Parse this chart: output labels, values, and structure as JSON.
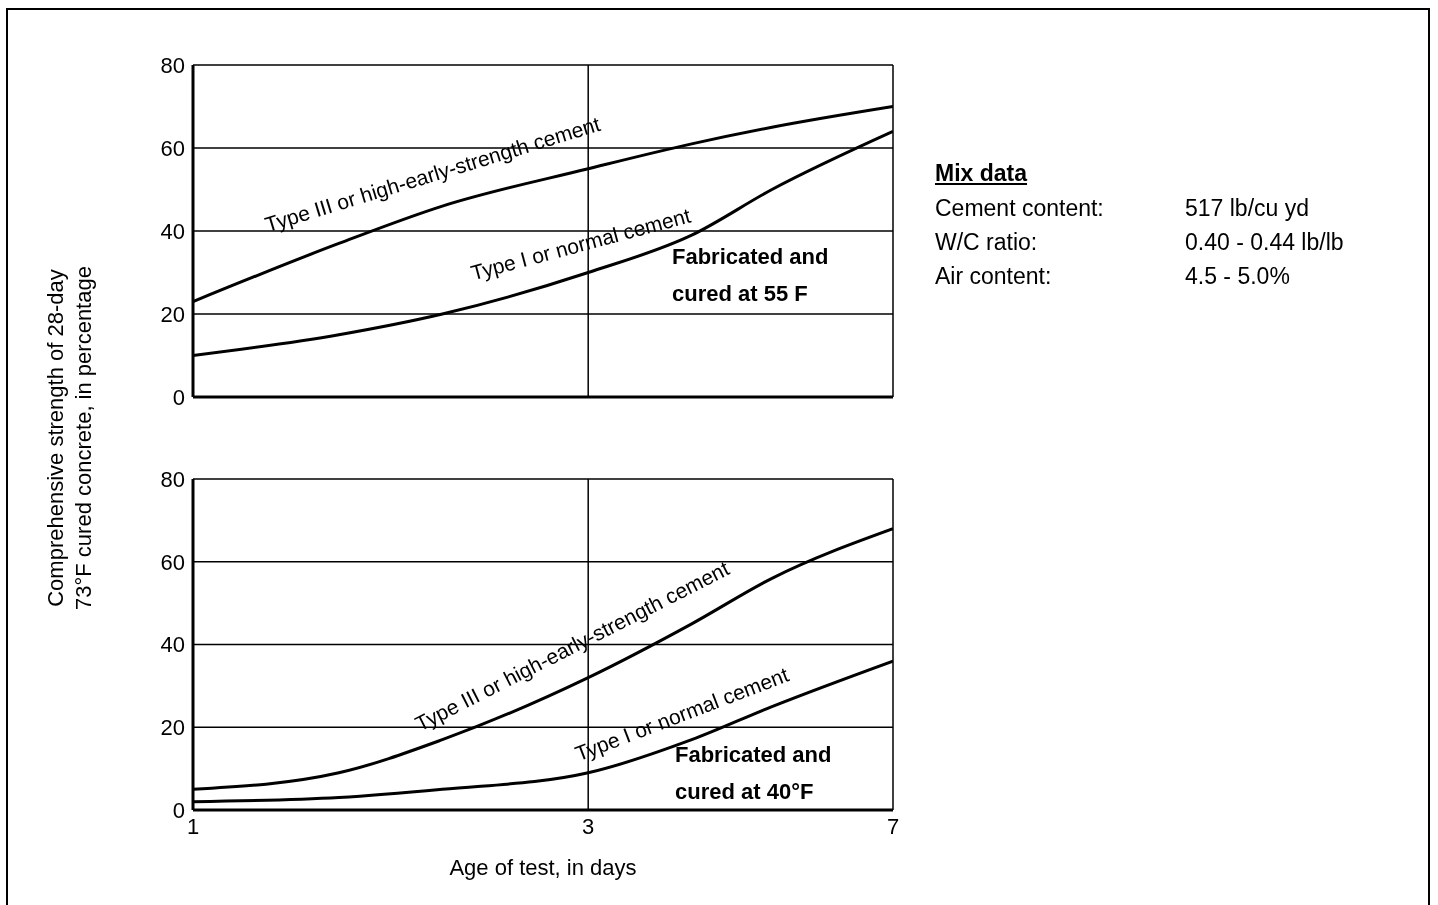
{
  "chart_data": [
    {
      "type": "line",
      "ylabel": "Comprehensive strength of 28-day\n73°F cured concrete, in percentage",
      "annotations": [
        "Fabricated and cured at 55 F"
      ],
      "log": "x",
      "xlim": [
        1,
        7
      ],
      "xticks": [
        1,
        3,
        7
      ],
      "ylim": [
        0,
        80
      ],
      "yticks": [
        0,
        20,
        40,
        60,
        80
      ],
      "grid": true,
      "tick_labels": "y",
      "x": [
        1,
        1.5,
        2,
        3,
        4,
        5,
        7
      ],
      "series": [
        {
          "name": "Type III or high-early-strength cement",
          "color": "#000000",
          "values": [
            23,
            37,
            46,
            55,
            61,
            65,
            70
          ]
        },
        {
          "name": "Type I or normal cement",
          "color": "#000000",
          "values": [
            10,
            15,
            20,
            30,
            39,
            50,
            64
          ]
        }
      ]
    },
    {
      "type": "line",
      "xlabel": "Age of test, in days",
      "annotations": [
        "Fabricated and cured at 40°F"
      ],
      "log": "x",
      "xlim": [
        1,
        7
      ],
      "xticks": [
        1,
        3,
        7
      ],
      "ylim": [
        0,
        80
      ],
      "yticks": [
        0,
        20,
        40,
        60,
        80
      ],
      "grid": true,
      "x": [
        1,
        1.5,
        2,
        3,
        4,
        5,
        7
      ],
      "series": [
        {
          "name": "Type III or high-early-strength cement",
          "color": "#000000",
          "values": [
            5,
            9,
            17,
            32,
            45,
            56,
            68
          ]
        },
        {
          "name": "Type I or normal cement",
          "color": "#000000",
          "values": [
            2,
            3,
            5,
            9,
            17,
            25,
            36
          ]
        }
      ]
    },
    {
      "type": "other",
      "title": "Mix data",
      "annotations": [
        "Cement content:",
        "517 lb/cu yd",
        "W/C ratio:",
        "0.40 - 0.44 lb/lb",
        "Air content:",
        "4.5 - 5.0%"
      ]
    }
  ]
}
